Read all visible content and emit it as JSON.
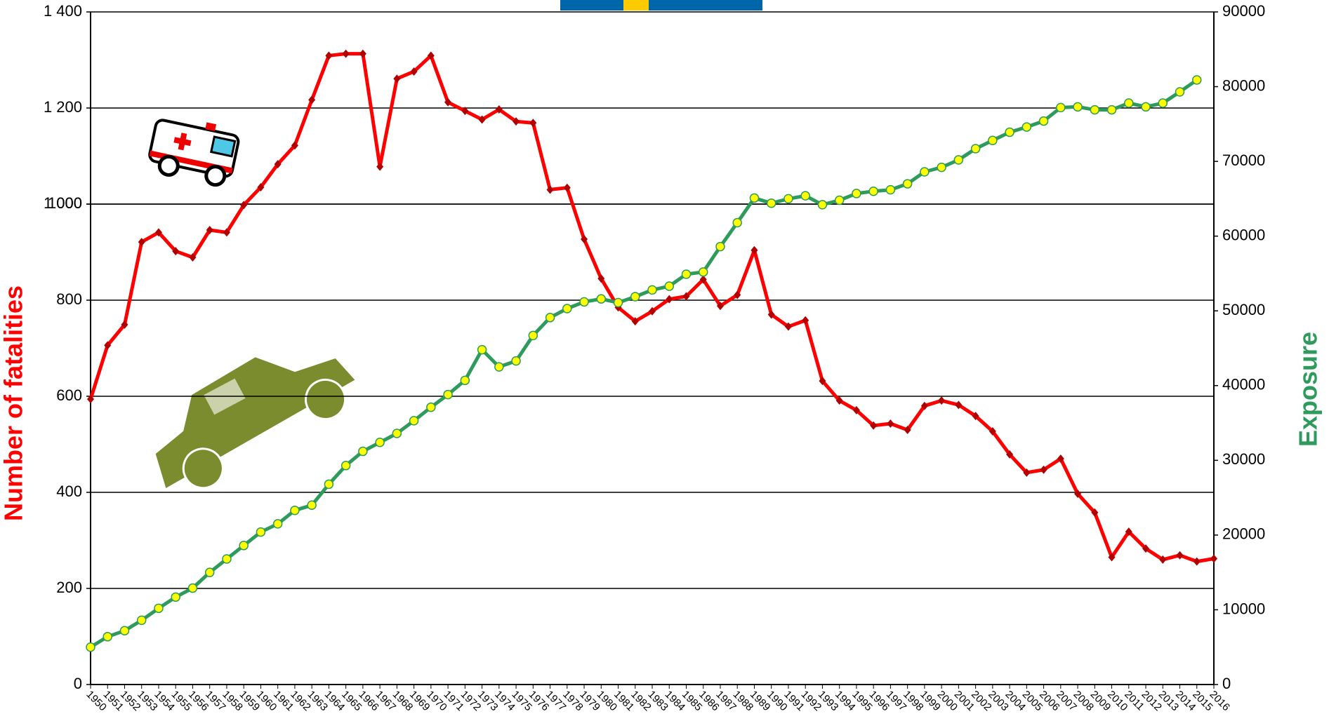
{
  "chart_data": {
    "type": "line",
    "categories": [
      "1950",
      "1951",
      "1952",
      "1953",
      "1954",
      "1955",
      "1956",
      "1957",
      "1958",
      "1959",
      "1960",
      "1961",
      "1962",
      "1963",
      "1964",
      "1965",
      "1966",
      "1967",
      "1968",
      "1969",
      "1970",
      "1971",
      "1972",
      "1973",
      "1974",
      "1975",
      "1976",
      "1977",
      "1978",
      "1979",
      "1980",
      "1981",
      "1982",
      "1983",
      "1984",
      "1985",
      "1986",
      "1987",
      "1988",
      "1989",
      "1990",
      "1991",
      "1992",
      "1993",
      "1994",
      "1995",
      "1996",
      "1997",
      "1998",
      "1999",
      "2000",
      "2001",
      "2002",
      "2003",
      "2004",
      "2005",
      "2006",
      "2007",
      "2008",
      "2009",
      "2010",
      "2011",
      "2012",
      "2013",
      "2014",
      "2015",
      "2016"
    ],
    "series": [
      {
        "name": "Number of fatalities",
        "color": "#ff0000",
        "axis": "y",
        "values": [
          594,
          706,
          749,
          921,
          941,
          902,
          889,
          946,
          941,
          998,
          1035,
          1083,
          1122,
          1217,
          1309,
          1313,
          1313,
          1078,
          1261,
          1276,
          1309,
          1212,
          1194,
          1176,
          1197,
          1172,
          1169,
          1030,
          1034,
          927,
          845,
          785,
          756,
          777,
          802,
          808,
          843,
          788,
          811,
          904,
          770,
          745,
          758,
          632,
          591,
          571,
          539,
          543,
          530,
          580,
          591,
          582,
          559,
          527,
          479,
          441,
          447,
          470,
          397,
          358,
          265,
          318,
          283,
          260,
          269,
          256,
          262
        ]
      },
      {
        "name": "Exposure",
        "color": "#2e9a5c",
        "axis": "y2",
        "values": [
          5000,
          6400,
          7200,
          8600,
          10200,
          11700,
          12900,
          15000,
          16800,
          18600,
          20400,
          21500,
          23300,
          24000,
          26800,
          29300,
          31200,
          32400,
          33600,
          35300,
          37100,
          38800,
          40700,
          44800,
          42500,
          43300,
          46700,
          49100,
          50300,
          51200,
          51600,
          51100,
          51900,
          52800,
          53300,
          54900,
          55200,
          58600,
          61800,
          65100,
          64400,
          65000,
          65400,
          64200,
          64800,
          65700,
          66000,
          66200,
          67000,
          68600,
          69200,
          70200,
          71700,
          72800,
          73900,
          74600,
          75400,
          77200,
          77300,
          76900,
          76900,
          77800,
          77300,
          77800,
          79300,
          80900,
          null
        ]
      }
    ],
    "ylim": [
      0,
      1400
    ],
    "yticks": [
      0,
      200,
      400,
      600,
      800,
      1000,
      {
        "value": 1000,
        "label": "1 000"
      },
      {
        "value": 1200,
        "label": "1 200"
      },
      {
        "value": 1400,
        "label": "1 400"
      }
    ],
    "y2lim": [
      0,
      90000
    ],
    "y2ticks": [
      0,
      10000,
      20000,
      30000,
      40000,
      50000,
      60000,
      70000,
      80000,
      90000
    ],
    "grid": true
  }
}
